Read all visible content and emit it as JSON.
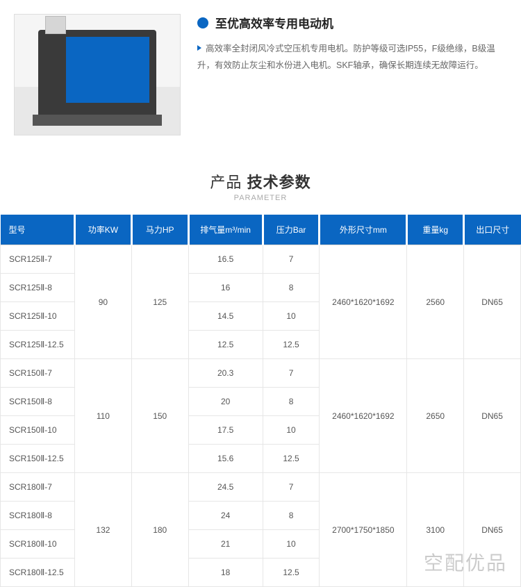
{
  "feature": {
    "title": "至优高效率专用电动机",
    "body": "高效率全封闭风冷式空压机专用电机。防护等级可选IP55，F级绝缘，B级温升，有效防止灰尘和水份进入电机。SKF轴承，确保长期连续无故障运行。"
  },
  "section": {
    "title_prefix": "产品",
    "title_bold": "技术参数",
    "subtitle_en": "PARAMETER"
  },
  "table": {
    "headers": [
      "型号",
      "功率KW",
      "马力HP",
      "排气量m³/min",
      "压力Bar",
      "外形尺寸mm",
      "重量kg",
      "出口尺寸"
    ],
    "groups": [
      {
        "kw": "90",
        "hp": "125",
        "dim": "2460*1620*1692",
        "weight": "2560",
        "outlet": "DN65",
        "rows": [
          {
            "model": "SCR125Ⅱ-7",
            "flow": "16.5",
            "bar": "7"
          },
          {
            "model": "SCR125Ⅱ-8",
            "flow": "16",
            "bar": "8"
          },
          {
            "model": "SCR125Ⅱ-10",
            "flow": "14.5",
            "bar": "10"
          },
          {
            "model": "SCR125Ⅱ-12.5",
            "flow": "12.5",
            "bar": "12.5"
          }
        ]
      },
      {
        "kw": "110",
        "hp": "150",
        "dim": "2460*1620*1692",
        "weight": "2650",
        "outlet": "DN65",
        "rows": [
          {
            "model": "SCR150Ⅱ-7",
            "flow": "20.3",
            "bar": "7"
          },
          {
            "model": "SCR150Ⅱ-8",
            "flow": "20",
            "bar": "8"
          },
          {
            "model": "SCR150Ⅱ-10",
            "flow": "17.5",
            "bar": "10"
          },
          {
            "model": "SCR150Ⅱ-12.5",
            "flow": "15.6",
            "bar": "12.5"
          }
        ]
      },
      {
        "kw": "132",
        "hp": "180",
        "dim": "2700*1750*1850",
        "weight": "3100",
        "outlet": "DN65",
        "rows": [
          {
            "model": "SCR180Ⅱ-7",
            "flow": "24.5",
            "bar": "7"
          },
          {
            "model": "SCR180Ⅱ-8",
            "flow": "24",
            "bar": "8"
          },
          {
            "model": "SCR180Ⅱ-10",
            "flow": "21",
            "bar": "10"
          },
          {
            "model": "SCR180Ⅱ-12.5",
            "flow": "18",
            "bar": "12.5"
          }
        ]
      }
    ]
  },
  "watermark": "空配优品",
  "colors": {
    "accent": "#0a66c2"
  }
}
